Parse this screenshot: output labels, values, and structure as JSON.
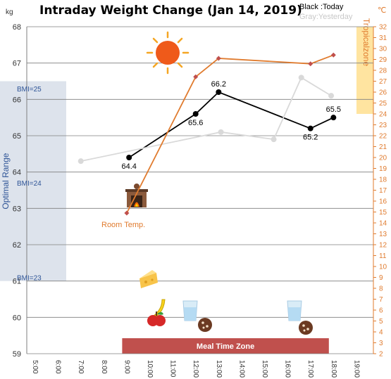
{
  "chart_data": {
    "type": "line",
    "title": "Intraday Weight Change (Jan 14, 2019)",
    "legend": {
      "today": "Black :Today",
      "yesterday": "Gray:Yesterday"
    },
    "y_left": {
      "unit": "kg",
      "min": 59,
      "max": 68,
      "ticks": [
        "59",
        "60",
        "61",
        "62",
        "63",
        "64",
        "65",
        "66",
        "67",
        "68"
      ]
    },
    "y_right": {
      "unit": "℃",
      "min": 2,
      "max": 32,
      "ticks": [
        "2",
        "3",
        "4",
        "5",
        "6",
        "7",
        "8",
        "9",
        "10",
        "11",
        "12",
        "13",
        "14",
        "15",
        "16",
        "17",
        "18",
        "19",
        "20",
        "21",
        "22",
        "23",
        "24",
        "25",
        "26",
        "27",
        "28",
        "29",
        "30",
        "31",
        "32"
      ]
    },
    "x_axis": {
      "min": 5,
      "max": 20,
      "ticks": [
        "5:00",
        "6:00",
        "7:00",
        "8:00",
        "9:00",
        "10:00",
        "11:00",
        "12:00",
        "13:00",
        "14:00",
        "15:00",
        "16:00",
        "17:00",
        "18:00",
        "19:00"
      ]
    },
    "series": [
      {
        "name": "Today",
        "axis": "left",
        "color": "#000000",
        "points": [
          {
            "x": 9.3,
            "y": 64.4,
            "label": "64.4"
          },
          {
            "x": 12.2,
            "y": 65.6,
            "label": "65.6"
          },
          {
            "x": 13.2,
            "y": 66.2,
            "label": "66.2"
          },
          {
            "x": 17.2,
            "y": 65.2,
            "label": "65.2"
          },
          {
            "x": 18.2,
            "y": 65.5,
            "label": "65.5"
          }
        ]
      },
      {
        "name": "Yesterday",
        "axis": "left",
        "color": "#d9d9d9",
        "points": [
          {
            "x": 7.2,
            "y": 64.3
          },
          {
            "x": 13.3,
            "y": 65.1
          },
          {
            "x": 15.6,
            "y": 64.9
          },
          {
            "x": 16.8,
            "y": 66.6
          },
          {
            "x": 18.1,
            "y": 66.1
          }
        ]
      },
      {
        "name": "Room Temp.",
        "axis": "right",
        "color": "#e07b2e",
        "points": [
          {
            "x": 9.2,
            "y": 14.9
          },
          {
            "x": 12.2,
            "y": 27.4
          },
          {
            "x": 13.2,
            "y": 29.1
          },
          {
            "x": 17.2,
            "y": 28.6
          },
          {
            "x": 18.2,
            "y": 29.4
          }
        ]
      }
    ],
    "zones": {
      "optimal": {
        "label": "Optimal Range",
        "from": 61,
        "to": 66.5,
        "color": "#dde3ec"
      },
      "tropical": {
        "label": "Tropicalzone",
        "from": 24,
        "to": 32,
        "color": "#ffe4a0"
      },
      "meal": {
        "label": "Meal Time Zone",
        "from": 9,
        "to": 18,
        "color": "#c0504d"
      }
    },
    "bmi_lines": [
      {
        "label": "BMI=25",
        "y": 66.3
      },
      {
        "label": "BMI=24",
        "y": 63.7
      },
      {
        "label": "BMI=23",
        "y": 61.1
      }
    ],
    "annotations": {
      "room_temp": "Room Temp."
    },
    "icons": [
      "sun-icon",
      "fireplace-icon",
      "cheese-icon",
      "banana-icon",
      "apple-icon",
      "water-glass-icon",
      "cookie-icon"
    ],
    "grid": true
  }
}
